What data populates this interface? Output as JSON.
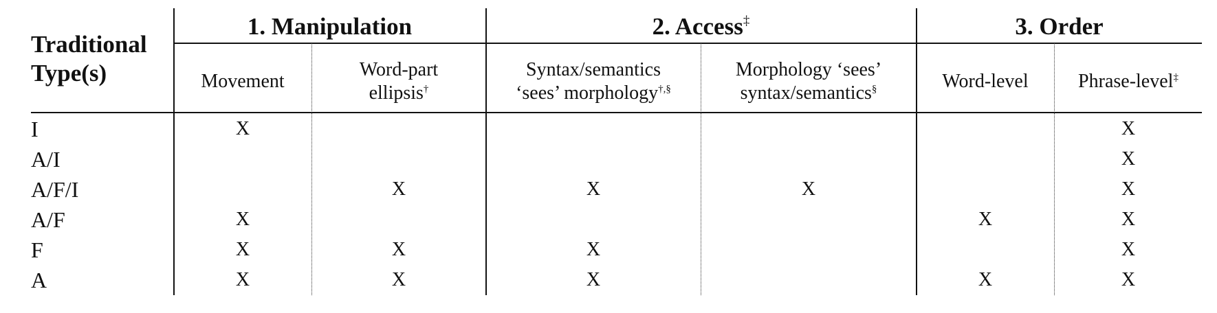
{
  "table": {
    "row_header": [
      "Traditional",
      "Type(s)"
    ],
    "groups": [
      {
        "label": "1. Manipulation",
        "sup": ""
      },
      {
        "label": "2. Access",
        "sup": "‡"
      },
      {
        "label": "3. Order",
        "sup": ""
      }
    ],
    "subcolumns": [
      {
        "line1": "Movement",
        "line2": "",
        "sup": ""
      },
      {
        "line1": "Word-part",
        "line2": "ellipsis",
        "sup": "†"
      },
      {
        "line1": "Syntax/semantics",
        "line2": "‘sees’ morphology",
        "sup": "†,§"
      },
      {
        "line1": "Morphology ‘sees’",
        "line2": "syntax/semantics",
        "sup": "§"
      },
      {
        "line1": "Word-level",
        "line2": "",
        "sup": ""
      },
      {
        "line1": "Phrase-level",
        "line2": "",
        "sup": "‡"
      }
    ],
    "rows": [
      {
        "type": "I",
        "marks": [
          "X",
          "",
          "",
          "",
          "",
          "X"
        ]
      },
      {
        "type": "A/I",
        "marks": [
          "",
          "",
          "",
          "",
          "",
          "X"
        ]
      },
      {
        "type": "A/F/I",
        "marks": [
          "",
          "X",
          "X",
          "X",
          "",
          "X"
        ]
      },
      {
        "type": "A/F",
        "marks": [
          "X",
          "",
          "",
          "",
          "X",
          "X"
        ]
      },
      {
        "type": "F",
        "marks": [
          "X",
          "X",
          "X",
          "",
          "",
          "X"
        ]
      },
      {
        "type": "A",
        "marks": [
          "X",
          "X",
          "X",
          "",
          "X",
          "X"
        ]
      }
    ]
  }
}
